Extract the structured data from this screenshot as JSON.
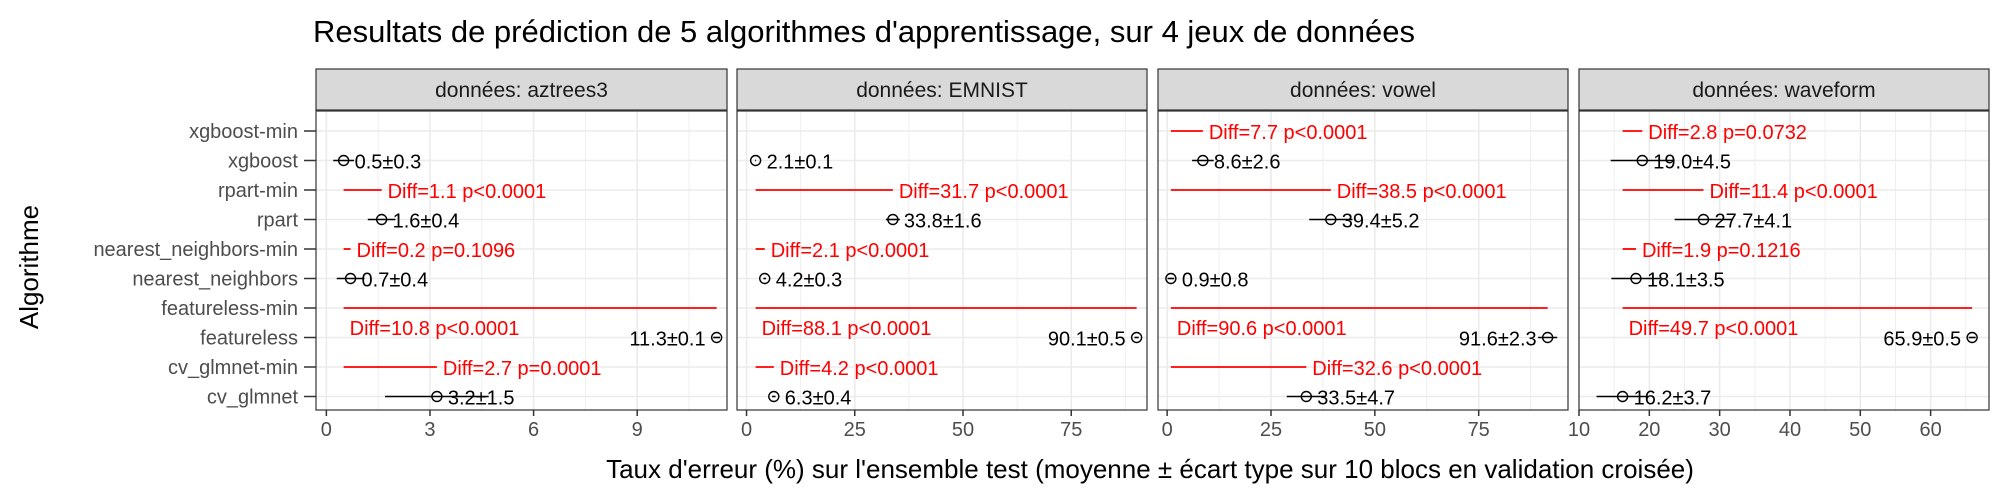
{
  "chart_data": {
    "type": "scatter",
    "title": "Resultats de prédiction de 5 algorithmes d'apprentissage, sur 4 jeux de données",
    "xlabel": "Taux d'erreur (%) sur l'ensemble test (moyenne ± écart type sur 10 blocs en validation croisée)",
    "ylabel": "Algorithme",
    "categories": [
      "xgboost-min",
      "xgboost",
      "rpart-min",
      "rpart",
      "nearest_neighbors-min",
      "nearest_neighbors",
      "featureless-min",
      "featureless",
      "cv_glmnet-min",
      "cv_glmnet"
    ],
    "colors": {
      "points": "#000000",
      "diff": "#ff0000",
      "strip_bg": "#d9d9d9",
      "grid": "#ebebeb"
    },
    "grid": true,
    "panels": [
      {
        "strip": "données: aztrees3",
        "xlim": [
          -0.3,
          11.6
        ],
        "xticks": [
          0,
          3,
          6,
          9
        ],
        "points": [
          {
            "algo": "xgboost",
            "mean": 0.5,
            "sd": 0.3,
            "label": "0.5±0.3"
          },
          {
            "algo": "rpart",
            "mean": 1.6,
            "sd": 0.4,
            "label": "1.6±0.4"
          },
          {
            "algo": "nearest_neighbors",
            "mean": 0.7,
            "sd": 0.4,
            "label": "0.7±0.4"
          },
          {
            "algo": "featureless",
            "mean": 11.3,
            "sd": 0.1,
            "label": "11.3±0.1"
          },
          {
            "algo": "cv_glmnet",
            "mean": 3.2,
            "sd": 1.5,
            "label": "3.2±1.5"
          }
        ],
        "diffs": [
          {
            "algo": "rpart-min",
            "from": 0.5,
            "to": 1.6,
            "label": "Diff=1.1 p<0.0001"
          },
          {
            "algo": "nearest_neighbors-min",
            "from": 0.5,
            "to": 0.7,
            "label": "Diff=0.2 p=0.1096"
          },
          {
            "algo": "featureless-min",
            "from": 0.5,
            "to": 11.3,
            "label": "Diff=10.8 p<0.0001"
          },
          {
            "algo": "cv_glmnet-min",
            "from": 0.5,
            "to": 3.2,
            "label": "Diff=2.7 p=0.0001"
          }
        ]
      },
      {
        "strip": "données: EMNIST",
        "xlim": [
          -2.2,
          92.5
        ],
        "xticks": [
          0,
          25,
          50,
          75
        ],
        "points": [
          {
            "algo": "xgboost",
            "mean": 2.1,
            "sd": 0.1,
            "label": "2.1±0.1"
          },
          {
            "algo": "rpart",
            "mean": 33.8,
            "sd": 1.6,
            "label": "33.8±1.6"
          },
          {
            "algo": "nearest_neighbors",
            "mean": 4.2,
            "sd": 0.3,
            "label": "4.2±0.3"
          },
          {
            "algo": "featureless",
            "mean": 90.1,
            "sd": 0.5,
            "label": "90.1±0.5"
          },
          {
            "algo": "cv_glmnet",
            "mean": 6.3,
            "sd": 0.4,
            "label": "6.3±0.4"
          }
        ],
        "diffs": [
          {
            "algo": "rpart-min",
            "from": 2.1,
            "to": 33.8,
            "label": "Diff=31.7 p<0.0001"
          },
          {
            "algo": "nearest_neighbors-min",
            "from": 2.1,
            "to": 4.2,
            "label": "Diff=2.1 p<0.0001"
          },
          {
            "algo": "featureless-min",
            "from": 2.1,
            "to": 90.1,
            "label": "Diff=88.1 p<0.0001"
          },
          {
            "algo": "cv_glmnet-min",
            "from": 2.1,
            "to": 6.3,
            "label": "Diff=4.2 p<0.0001"
          }
        ]
      },
      {
        "strip": "données: vowel",
        "xlim": [
          -2.2,
          96.5
        ],
        "xticks": [
          0,
          25,
          50,
          75
        ],
        "points": [
          {
            "algo": "xgboost",
            "mean": 8.6,
            "sd": 2.6,
            "label": "8.6±2.6"
          },
          {
            "algo": "rpart",
            "mean": 39.4,
            "sd": 5.2,
            "label": "39.4±5.2"
          },
          {
            "algo": "nearest_neighbors",
            "mean": 0.9,
            "sd": 0.8,
            "label": "0.9±0.8"
          },
          {
            "algo": "featureless",
            "mean": 91.6,
            "sd": 2.3,
            "label": "91.6±2.3"
          },
          {
            "algo": "cv_glmnet",
            "mean": 33.5,
            "sd": 4.7,
            "label": "33.5±4.7"
          }
        ],
        "diffs": [
          {
            "algo": "xgboost-min",
            "from": 0.9,
            "to": 8.6,
            "label": "Diff=7.7 p<0.0001"
          },
          {
            "algo": "rpart-min",
            "from": 0.9,
            "to": 39.4,
            "label": "Diff=38.5 p<0.0001"
          },
          {
            "algo": "featureless-min",
            "from": 0.9,
            "to": 91.6,
            "label": "Diff=90.6 p<0.0001"
          },
          {
            "algo": "cv_glmnet-min",
            "from": 0.9,
            "to": 33.5,
            "label": "Diff=32.6 p<0.0001"
          }
        ]
      },
      {
        "strip": "données: waveform",
        "xlim": [
          10,
          68.3
        ],
        "xticks": [
          10,
          20,
          30,
          40,
          50,
          60
        ],
        "points": [
          {
            "algo": "xgboost",
            "mean": 19.0,
            "sd": 4.5,
            "label": "19.0±4.5"
          },
          {
            "algo": "rpart",
            "mean": 27.7,
            "sd": 4.1,
            "label": "27.7±4.1"
          },
          {
            "algo": "nearest_neighbors",
            "mean": 18.1,
            "sd": 3.5,
            "label": "18.1±3.5"
          },
          {
            "algo": "featureless",
            "mean": 65.9,
            "sd": 0.5,
            "label": "65.9±0.5"
          },
          {
            "algo": "cv_glmnet",
            "mean": 16.2,
            "sd": 3.7,
            "label": "16.2±3.7"
          }
        ],
        "diffs": [
          {
            "algo": "xgboost-min",
            "from": 16.2,
            "to": 19.0,
            "label": "Diff=2.8 p=0.0732"
          },
          {
            "algo": "rpart-min",
            "from": 16.2,
            "to": 27.7,
            "label": "Diff=11.4 p<0.0001"
          },
          {
            "algo": "nearest_neighbors-min",
            "from": 16.2,
            "to": 18.1,
            "label": "Diff=1.9 p=0.1216"
          },
          {
            "algo": "featureless-min",
            "from": 16.2,
            "to": 65.9,
            "label": "Diff=49.7 p<0.0001"
          }
        ]
      }
    ]
  }
}
